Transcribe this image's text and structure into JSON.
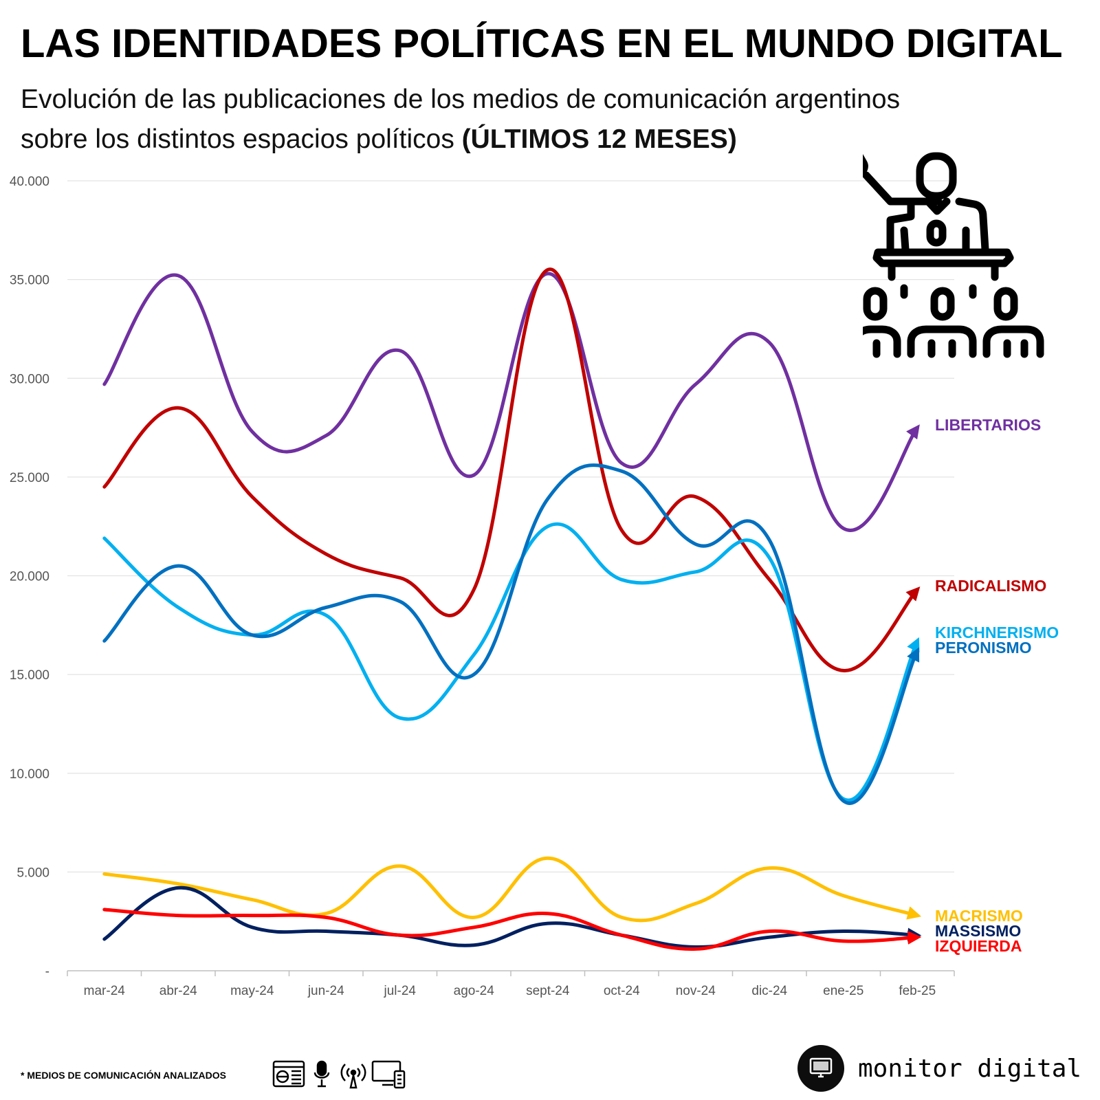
{
  "header": {
    "title": "LAS IDENTIDADES POLÍTICAS EN EL MUNDO DIGITAL",
    "subtitle_line1": "Evolución de las publicaciones de los medios de comunicación argentinos",
    "subtitle_line2": "sobre los distintos espacios políticos ",
    "subtitle_bold": "(ÚLTIMOS 12 MESES)"
  },
  "footer": {
    "footnote": "* MEDIOS DE COMUNICACIÓN ANALIZADOS",
    "media_icons": [
      "newspaper-icon",
      "microphone-icon",
      "radio-antenna-icon",
      "tv-monitor-icon"
    ],
    "brand_name": "monitor digital",
    "brand_logo": "monitor-icon"
  },
  "illustration": "speaker-podium-audience-icon",
  "chart_data": {
    "type": "line",
    "categories": [
      "mar-24",
      "abr-24",
      "may-24",
      "jun-24",
      "jul-24",
      "ago-24",
      "sept-24",
      "oct-24",
      "nov-24",
      "dic-24",
      "ene-25",
      "feb-25"
    ],
    "ylim": [
      0,
      40000
    ],
    "yticks": [
      {
        "value": 0,
        "label": "-"
      },
      {
        "value": 5000,
        "label": "5.000"
      },
      {
        "value": 10000,
        "label": "10.000"
      },
      {
        "value": 15000,
        "label": "15.000"
      },
      {
        "value": 20000,
        "label": "20.000"
      },
      {
        "value": 25000,
        "label": "25.000"
      },
      {
        "value": 30000,
        "label": "30.000"
      },
      {
        "value": 35000,
        "label": "35.000"
      },
      {
        "value": 40000,
        "label": "40.000"
      }
    ],
    "grid": true,
    "legend": "inline-right",
    "series": [
      {
        "name": "LIBERTARIOS",
        "color": "#7030A0",
        "values": [
          29700,
          35200,
          27300,
          27100,
          31400,
          25100,
          35300,
          25700,
          29700,
          31800,
          22400,
          27500
        ]
      },
      {
        "name": "RADICALISMO",
        "color": "#C00000",
        "values": [
          24500,
          28500,
          24000,
          21100,
          19900,
          19300,
          35500,
          22300,
          24000,
          19800,
          15200,
          19300
        ]
      },
      {
        "name": "KIRCHNERISMO",
        "color": "#00B0F0",
        "values": [
          21900,
          18400,
          17000,
          18000,
          12800,
          16000,
          22500,
          19800,
          20200,
          20900,
          8700,
          16700
        ]
      },
      {
        "name": "PERONISMO",
        "color": "#0070C0",
        "values": [
          16700,
          20500,
          17000,
          18400,
          18700,
          15000,
          23900,
          25300,
          21600,
          21800,
          8600,
          16200
        ]
      },
      {
        "name": "MACRISMO",
        "color": "#FFC000",
        "values": [
          4900,
          4400,
          3600,
          2900,
          5300,
          2700,
          5700,
          2700,
          3400,
          5200,
          3800,
          2800
        ]
      },
      {
        "name": "MASSISMO",
        "color": "#002060",
        "values": [
          1600,
          4200,
          2200,
          2000,
          1800,
          1300,
          2400,
          1800,
          1200,
          1700,
          2000,
          1800
        ]
      },
      {
        "name": "IZQUIERDA",
        "color": "#FF0000",
        "values": [
          3100,
          2800,
          2800,
          2700,
          1800,
          2200,
          2900,
          1800,
          1100,
          2000,
          1500,
          1700
        ]
      }
    ]
  }
}
